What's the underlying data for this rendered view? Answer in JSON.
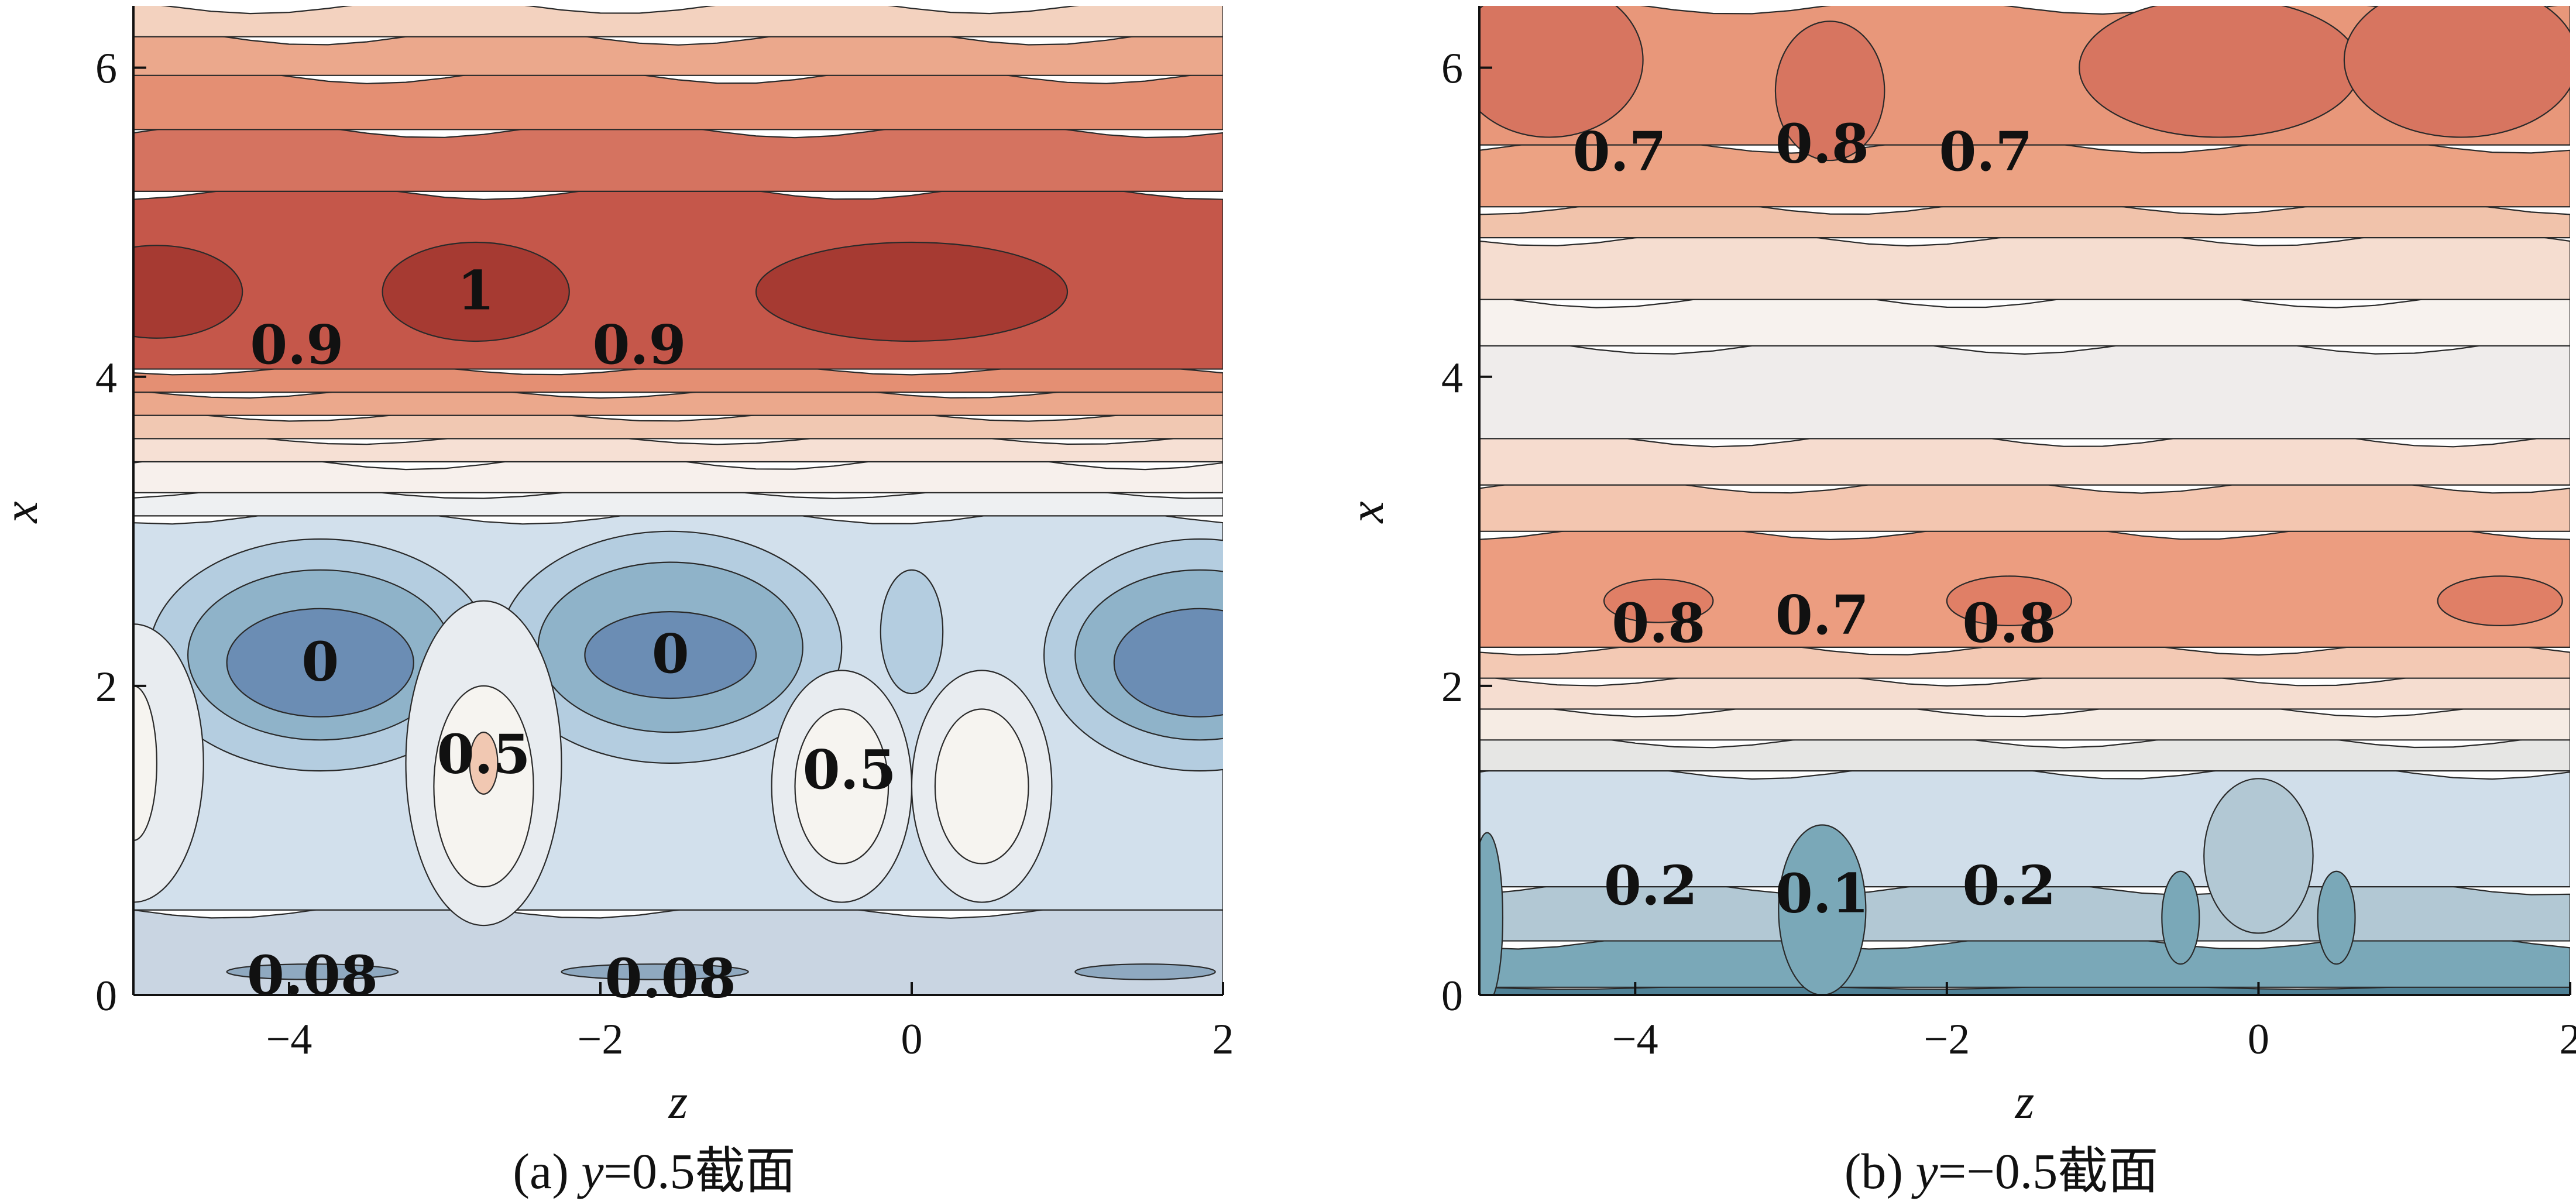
{
  "chart_data": [
    {
      "type": "heatmap",
      "subtype": "filled-contour",
      "caption_parts": [
        "(a) ",
        "y",
        "=0.5截面"
      ],
      "xlabel": "z",
      "ylabel": "x",
      "xlim": [
        -5,
        2
      ],
      "ylim": [
        0,
        6.4
      ],
      "xticks": [
        "−4",
        "−2",
        "0",
        "2"
      ],
      "xtick_values": [
        -4,
        -2,
        0,
        2
      ],
      "yticks": [
        "0",
        "2",
        "4",
        "6"
      ],
      "ytick_values": [
        0,
        2,
        4,
        6
      ],
      "colormap": "blue-white-red",
      "bands": [
        {
          "x_from": 0.0,
          "x_to": 0.55,
          "color": "#c9d5e2"
        },
        {
          "x_from": 0.55,
          "x_to": 3.1,
          "color": "#d2e0ec"
        },
        {
          "x_from": 3.1,
          "x_to": 3.25,
          "color": "#eef0f2"
        },
        {
          "x_from": 3.25,
          "x_to": 3.45,
          "color": "#f7f0ec"
        },
        {
          "x_from": 3.45,
          "x_to": 3.6,
          "color": "#f6e0d4"
        },
        {
          "x_from": 3.6,
          "x_to": 3.75,
          "color": "#f1c8b2"
        },
        {
          "x_from": 3.75,
          "x_to": 3.9,
          "color": "#eba88c"
        },
        {
          "x_from": 3.9,
          "x_to": 4.05,
          "color": "#e48f73"
        },
        {
          "x_from": 4.05,
          "x_to": 5.2,
          "color": "#c5574a"
        },
        {
          "x_from": 5.2,
          "x_to": 5.6,
          "color": "#d57360"
        },
        {
          "x_from": 5.6,
          "x_to": 5.95,
          "color": "#e48f73"
        },
        {
          "x_from": 5.95,
          "x_to": 6.2,
          "color": "#eba88c"
        },
        {
          "x_from": 6.2,
          "x_to": 6.4,
          "color": "#f3d2bf"
        }
      ],
      "blobs": [
        {
          "z": -4.85,
          "x": 4.55,
          "rz": 0.55,
          "rx": 0.3,
          "color": "#a63a32"
        },
        {
          "z": -2.8,
          "x": 4.55,
          "rz": 0.6,
          "rx": 0.32,
          "color": "#a63a32"
        },
        {
          "z": 0.0,
          "x": 4.55,
          "rz": 1.0,
          "rx": 0.32,
          "color": "#a63a32"
        },
        {
          "z": -3.8,
          "x": 2.2,
          "rz": 1.1,
          "rx": 0.75,
          "color": "#b4cde0"
        },
        {
          "z": -3.8,
          "x": 2.2,
          "rz": 0.85,
          "rx": 0.55,
          "color": "#8fb3c9"
        },
        {
          "z": -3.8,
          "x": 2.15,
          "rz": 0.6,
          "rx": 0.35,
          "color": "#6b8db4"
        },
        {
          "z": -1.55,
          "x": 2.25,
          "rz": 1.1,
          "rx": 0.75,
          "color": "#b4cde0"
        },
        {
          "z": -1.55,
          "x": 2.25,
          "rz": 0.85,
          "rx": 0.55,
          "color": "#8fb3c9"
        },
        {
          "z": -1.55,
          "x": 2.2,
          "rz": 0.55,
          "rx": 0.28,
          "color": "#6b8db4"
        },
        {
          "z": 1.85,
          "x": 2.2,
          "rz": 1.0,
          "rx": 0.75,
          "color": "#b4cde0"
        },
        {
          "z": 1.85,
          "x": 2.2,
          "rz": 0.8,
          "rx": 0.55,
          "color": "#8fb3c9"
        },
        {
          "z": 1.85,
          "x": 2.15,
          "rz": 0.55,
          "rx": 0.35,
          "color": "#6b8db4"
        },
        {
          "z": 0.0,
          "x": 2.35,
          "rz": 0.2,
          "rx": 0.4,
          "color": "#b4cde0"
        },
        {
          "z": -2.75,
          "x": 1.5,
          "rz": 0.5,
          "rx": 1.05,
          "color": "#e8ecf0"
        },
        {
          "z": -2.75,
          "x": 1.35,
          "rz": 0.32,
          "rx": 0.65,
          "color": "#f6f4f0"
        },
        {
          "z": -2.75,
          "x": 1.5,
          "rz": 0.09,
          "rx": 0.2,
          "color": "#f1c8b2"
        },
        {
          "z": -0.45,
          "x": 1.35,
          "rz": 0.45,
          "rx": 0.75,
          "color": "#e8ecf0"
        },
        {
          "z": 0.45,
          "x": 1.35,
          "rz": 0.45,
          "rx": 0.75,
          "color": "#e8ecf0"
        },
        {
          "z": -0.45,
          "x": 1.35,
          "rz": 0.3,
          "rx": 0.5,
          "color": "#f6f4f0"
        },
        {
          "z": 0.45,
          "x": 1.35,
          "rz": 0.3,
          "rx": 0.5,
          "color": "#f6f4f0"
        },
        {
          "z": -5.0,
          "x": 1.5,
          "rz": 0.45,
          "rx": 0.9,
          "color": "#e8ecf0"
        },
        {
          "z": -5.0,
          "x": 1.5,
          "rz": 0.15,
          "rx": 0.5,
          "color": "#f6f4f0"
        },
        {
          "z": -3.85,
          "x": 0.15,
          "rz": 0.55,
          "rx": 0.05,
          "color": "#8fa9c0"
        },
        {
          "z": -1.65,
          "x": 0.15,
          "rz": 0.6,
          "rx": 0.05,
          "color": "#8fa9c0"
        },
        {
          "z": 1.5,
          "x": 0.15,
          "rz": 0.45,
          "rx": 0.05,
          "color": "#8fa9c0"
        }
      ],
      "contour_labels": [
        {
          "text": "1",
          "z": -2.8,
          "x": 4.55
        },
        {
          "text": "0.9",
          "z": -3.95,
          "x": 4.2
        },
        {
          "text": "0.9",
          "z": -1.75,
          "x": 4.2
        },
        {
          "text": "0",
          "z": -3.8,
          "x": 2.15
        },
        {
          "text": "0",
          "z": -1.55,
          "x": 2.2
        },
        {
          "text": "0.5",
          "z": -2.75,
          "x": 1.55
        },
        {
          "text": "0.5",
          "z": -0.4,
          "x": 1.45
        },
        {
          "text": "0.08",
          "z": -3.85,
          "x": 0.12
        },
        {
          "text": "0.08",
          "z": -1.55,
          "x": 0.1
        }
      ]
    },
    {
      "type": "heatmap",
      "subtype": "filled-contour",
      "caption_parts": [
        "(b) ",
        "y",
        "=−0.5截面"
      ],
      "xlabel": "z",
      "ylabel": "x",
      "xlim": [
        -5,
        2
      ],
      "ylim": [
        0,
        6.4
      ],
      "xticks": [
        "−4",
        "−2",
        "0",
        "2"
      ],
      "xtick_values": [
        -4,
        -2,
        0,
        2
      ],
      "yticks": [
        "0",
        "2",
        "4",
        "6"
      ],
      "ytick_values": [
        0,
        2,
        4,
        6
      ],
      "colormap": "blue-white-red",
      "bands": [
        {
          "x_from": 0.0,
          "x_to": 0.05,
          "color": "#4f8196"
        },
        {
          "x_from": 0.05,
          "x_to": 0.35,
          "color": "#7aa8b8"
        },
        {
          "x_from": 0.35,
          "x_to": 0.7,
          "color": "#b2c8d4"
        },
        {
          "x_from": 0.7,
          "x_to": 1.45,
          "color": "#d0deea"
        },
        {
          "x_from": 1.45,
          "x_to": 1.65,
          "color": "#e6e6e4"
        },
        {
          "x_from": 1.65,
          "x_to": 1.85,
          "color": "#f6ece4"
        },
        {
          "x_from": 1.85,
          "x_to": 2.05,
          "color": "#f5ddd0"
        },
        {
          "x_from": 2.05,
          "x_to": 2.25,
          "color": "#f3c9b4"
        },
        {
          "x_from": 2.25,
          "x_to": 3.0,
          "color": "#ec9d80"
        },
        {
          "x_from": 3.0,
          "x_to": 3.3,
          "color": "#f3c6b0"
        },
        {
          "x_from": 3.3,
          "x_to": 3.6,
          "color": "#f6dccf"
        },
        {
          "x_from": 3.6,
          "x_to": 4.2,
          "color": "#efeceb"
        },
        {
          "x_from": 4.2,
          "x_to": 4.5,
          "color": "#f7f2ee"
        },
        {
          "x_from": 4.5,
          "x_to": 4.9,
          "color": "#f5ddd0"
        },
        {
          "x_from": 4.9,
          "x_to": 5.1,
          "color": "#f1c3ab"
        },
        {
          "x_from": 5.1,
          "x_to": 5.5,
          "color": "#eca283"
        },
        {
          "x_from": 5.5,
          "x_to": 6.4,
          "color": "#e8977a"
        }
      ],
      "blobs": [
        {
          "z": -4.55,
          "x": 6.05,
          "rz": 0.6,
          "rx": 0.5,
          "color": "#d77560"
        },
        {
          "z": -2.75,
          "x": 5.85,
          "rz": 0.35,
          "rx": 0.45,
          "color": "#d77560"
        },
        {
          "z": -0.25,
          "x": 6.0,
          "rz": 0.9,
          "rx": 0.45,
          "color": "#d77560"
        },
        {
          "z": 1.3,
          "x": 6.05,
          "rz": 0.75,
          "rx": 0.5,
          "color": "#d77560"
        },
        {
          "z": -3.85,
          "x": 2.55,
          "rz": 0.35,
          "rx": 0.14,
          "color": "#e07f66"
        },
        {
          "z": -1.6,
          "x": 2.55,
          "rz": 0.4,
          "rx": 0.16,
          "color": "#e07f66"
        },
        {
          "z": 1.55,
          "x": 2.55,
          "rz": 0.4,
          "rx": 0.16,
          "color": "#e07f66"
        },
        {
          "z": -2.8,
          "x": 0.55,
          "rz": 0.28,
          "rx": 0.55,
          "color": "#7aa8b8"
        },
        {
          "z": -0.5,
          "x": 0.5,
          "rz": 0.12,
          "rx": 0.3,
          "color": "#7aa8b8"
        },
        {
          "z": 0.5,
          "x": 0.5,
          "rz": 0.12,
          "rx": 0.3,
          "color": "#7aa8b8"
        },
        {
          "z": -4.95,
          "x": 0.5,
          "rz": 0.1,
          "rx": 0.55,
          "color": "#7aa8b8"
        },
        {
          "z": 0.0,
          "x": 0.9,
          "rz": 0.35,
          "rx": 0.5,
          "color": "#b2c8d4"
        }
      ],
      "contour_labels": [
        {
          "text": "0.7",
          "z": -4.1,
          "x": 5.45
        },
        {
          "text": "0.8",
          "z": -2.8,
          "x": 5.5
        },
        {
          "text": "0.7",
          "z": -1.75,
          "x": 5.45
        },
        {
          "text": "0.8",
          "z": -3.85,
          "x": 2.4
        },
        {
          "text": "0.7",
          "z": -2.8,
          "x": 2.45
        },
        {
          "text": "0.8",
          "z": -1.6,
          "x": 2.4
        },
        {
          "text": "0.2",
          "z": -3.9,
          "x": 0.7
        },
        {
          "text": "0.1",
          "z": -2.8,
          "x": 0.65
        },
        {
          "text": "0.2",
          "z": -1.6,
          "x": 0.7
        }
      ]
    }
  ]
}
